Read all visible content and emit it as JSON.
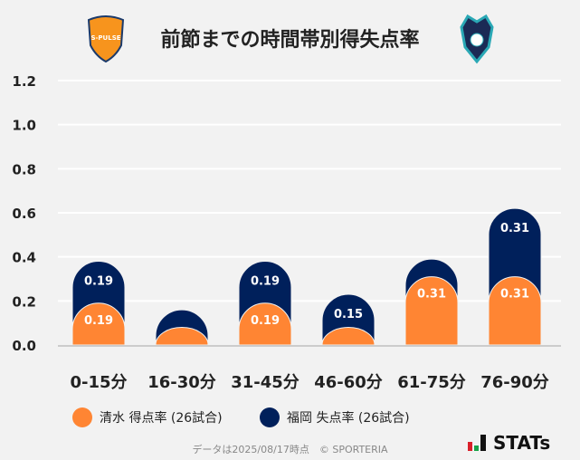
{
  "chart_data": {
    "type": "bar",
    "stacked": true,
    "title": "前節までの時間帯別得失点率",
    "categories": [
      "0-15分",
      "16-30分",
      "31-45分",
      "46-60分",
      "61-75分",
      "76-90分"
    ],
    "series": [
      {
        "name": "清水 得点率 (26試合)",
        "color": "#ff8533",
        "values": [
          0.19,
          0.08,
          0.19,
          0.08,
          0.31,
          0.31
        ],
        "labels": [
          "0.19",
          "",
          "0.19",
          "",
          "0.31",
          "0.31"
        ]
      },
      {
        "name": "福岡 失点率 (26試合)",
        "color": "#00205b",
        "values": [
          0.19,
          0.08,
          0.19,
          0.15,
          0.08,
          0.31
        ],
        "labels": [
          "0.19",
          "",
          "0.19",
          "0.15",
          "",
          "0.31"
        ]
      }
    ],
    "ylim": [
      0,
      1.2
    ],
    "yticks": [
      "0.0",
      "0.2",
      "0.4",
      "0.6",
      "0.8",
      "1.0",
      "1.2"
    ],
    "grid": true,
    "legend": "bottom"
  },
  "logos": {
    "left": "S-PULSE",
    "right": "Avispa Fukuoka"
  },
  "footer": "データは2025/08/17時点　© SPORTERIA",
  "brand": "STATs"
}
